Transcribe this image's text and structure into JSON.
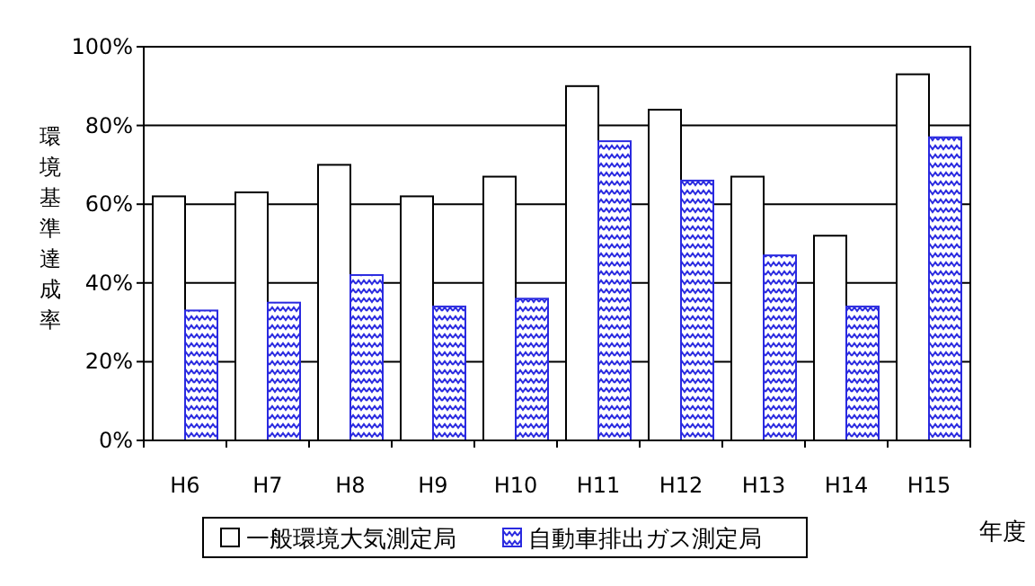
{
  "chart_data": {
    "type": "bar",
    "ylabel": "環境基準達成率",
    "xlabel": "年度",
    "categories": [
      "H6",
      "H7",
      "H8",
      "H9",
      "H10",
      "H11",
      "H12",
      "H13",
      "H14",
      "H15"
    ],
    "series": [
      {
        "name": "一般環境大気測定局",
        "color": "#ffffff",
        "values": [
          62,
          63,
          70,
          62,
          67,
          90,
          84,
          67,
          52,
          93
        ]
      },
      {
        "name": "自動車排出ガス測定局",
        "color": "#2a2ae0",
        "values": [
          33,
          35,
          42,
          34,
          36,
          76,
          66,
          47,
          34,
          77
        ]
      }
    ],
    "ylim": [
      0,
      100
    ],
    "yticks": [
      {
        "value": 0,
        "label": "0%"
      },
      {
        "value": 20,
        "label": "20%"
      },
      {
        "value": 40,
        "label": "40%"
      },
      {
        "value": 60,
        "label": "60%"
      },
      {
        "value": 80,
        "label": "80%"
      },
      {
        "value": 100,
        "label": "100%"
      }
    ],
    "grid": "y",
    "legend": "bottom"
  }
}
